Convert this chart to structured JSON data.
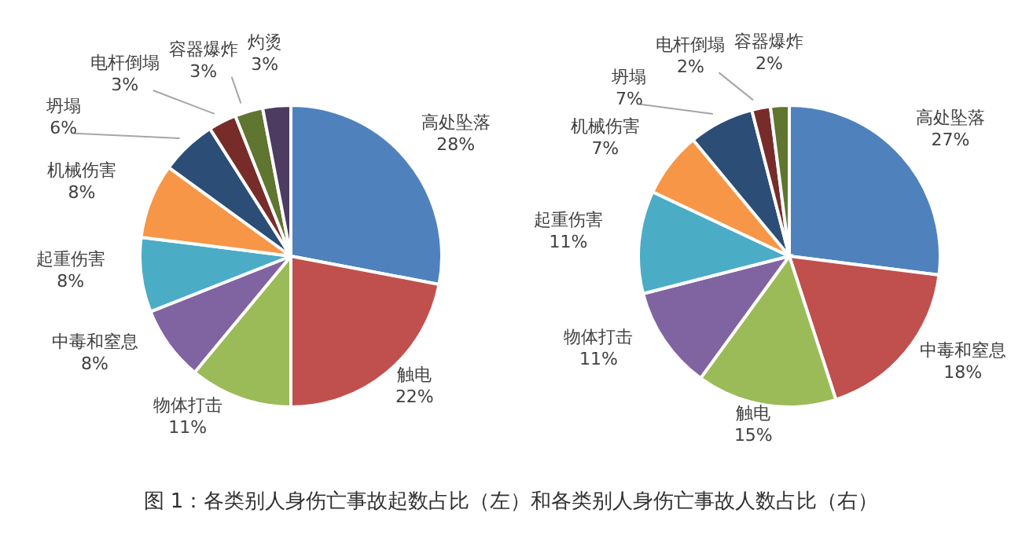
{
  "chart_data": [
    {
      "type": "pie",
      "categories": [
        "高处坠落",
        "触电",
        "物体打击",
        "中毒和窒息",
        "起重伤害",
        "机械伤害",
        "坍塌",
        "电杆倒塌",
        "容器爆炸",
        "灼烫"
      ],
      "values": [
        28,
        22,
        11,
        8,
        8,
        8,
        6,
        3,
        3,
        3
      ],
      "value_labels": [
        "28%",
        "22%",
        "11%",
        "8%",
        "8%",
        "8%",
        "6%",
        "3%",
        "3%",
        "3%"
      ],
      "colors": [
        "#4f81bd",
        "#c0504d",
        "#9bbb59",
        "#8064a2",
        "#4bacc6",
        "#f79646",
        "#2c4d75",
        "#772c2a",
        "#5f7530",
        "#4d3b62"
      ],
      "annotations": [
        "图 1：各类别人身伤亡事故起数占比（左）和各类别人身伤亡事故人数占比（右）"
      ]
    },
    {
      "type": "pie",
      "categories": [
        "高处坠落",
        "中毒和窒息",
        "触电",
        "物体打击",
        "起重伤害",
        "机械伤害",
        "坍塌",
        "电杆倒塌",
        "容器爆炸"
      ],
      "values": [
        27,
        18,
        15,
        11,
        11,
        7,
        7,
        2,
        2
      ],
      "value_labels": [
        "27%",
        "18%",
        "15%",
        "11%",
        "11%",
        "7%",
        "7%",
        "2%",
        "2%"
      ],
      "colors": [
        "#4f81bd",
        "#c0504d",
        "#9bbb59",
        "#8064a2",
        "#4bacc6",
        "#f79646",
        "#2c4d75",
        "#772c2a",
        "#5f7530"
      ]
    }
  ]
}
